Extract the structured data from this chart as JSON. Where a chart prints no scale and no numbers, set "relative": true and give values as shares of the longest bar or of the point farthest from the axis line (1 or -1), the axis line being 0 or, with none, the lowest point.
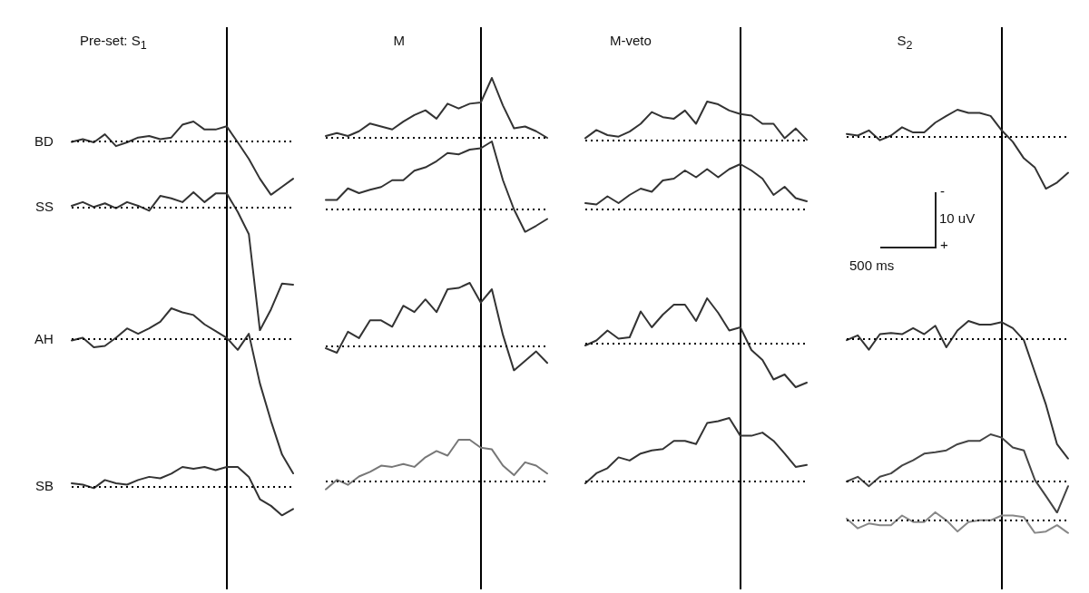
{
  "chart_data": [
    {
      "type": "line",
      "title": "Pre-set: S$_{1}$",
      "ylabel": "BD",
      "relative": true,
      "marker": "none",
      "categories": [
        null,
        null,
        null,
        null,
        null,
        null,
        null,
        null,
        null,
        null,
        null,
        null,
        null,
        null,
        null,
        null,
        null,
        null,
        null,
        null,
        null
      ],
      "series": [
        {
          "color": "#333333",
          "values": [
            -0.01,
            0.04,
            -0.02,
            0.13,
            -0.09,
            -0.02,
            0.07,
            0.1,
            0.04,
            0.07,
            0.31,
            0.37,
            0.22,
            0.22,
            0.28,
            -0.02,
            -0.33,
            -0.7,
            -1,
            -0.85,
            -0.7
          ]
        }
      ],
      "ref_lines": [
        {
          "axis": "y",
          "value": 0,
          "line_style": "dotted",
          "color": "#000000"
        }
      ]
    },
    {
      "type": "line",
      "title": "M",
      "relative": true,
      "marker": "none",
      "categories": [
        null,
        null,
        null,
        null,
        null,
        null,
        null,
        null,
        null,
        null,
        null,
        null,
        null,
        null,
        null,
        null,
        null,
        null,
        null,
        null,
        null
      ],
      "series": [
        {
          "color": "#333333",
          "values": [
            0.03,
            0.08,
            0.03,
            0.11,
            0.24,
            0.19,
            0.14,
            0.27,
            0.38,
            0.46,
            0.32,
            0.57,
            0.49,
            0.57,
            0.59,
            1,
            0.54,
            0.16,
            0.19,
            0.11,
            0
          ]
        }
      ],
      "ref_lines": [
        {
          "axis": "y",
          "value": 0,
          "line_style": "dotted",
          "color": "#000000"
        }
      ]
    },
    {
      "type": "line",
      "title": "M-veto",
      "relative": true,
      "marker": "none",
      "categories": [
        null,
        null,
        null,
        null,
        null,
        null,
        null,
        null,
        null,
        null,
        null,
        null,
        null,
        null,
        null,
        null,
        null,
        null,
        null,
        null,
        null
      ],
      "series": [
        {
          "color": "#333333",
          "values": [
            0.06,
            0.27,
            0.14,
            0.1,
            0.23,
            0.43,
            0.73,
            0.6,
            0.56,
            0.77,
            0.43,
            1,
            0.93,
            0.77,
            0.68,
            0.64,
            0.43,
            0.43,
            0.06,
            0.31,
            0.02
          ]
        }
      ],
      "ref_lines": [
        {
          "axis": "y",
          "value": 0,
          "line_style": "dotted",
          "color": "#000000"
        }
      ]
    },
    {
      "type": "line",
      "title": "S$_{2}$",
      "relative": true,
      "marker": "none",
      "categories": [
        null,
        null,
        null,
        null,
        null,
        null,
        null,
        null,
        null,
        null,
        null,
        null,
        null,
        null,
        null,
        null,
        null,
        null,
        null,
        null,
        null
      ],
      "series": [
        {
          "color": "#333333",
          "values": [
            0.06,
            0.03,
            0.13,
            -0.06,
            0.03,
            0.19,
            0.09,
            0.09,
            0.28,
            0.41,
            0.53,
            0.47,
            0.47,
            0.41,
            0.13,
            -0.09,
            -0.41,
            -0.59,
            -1,
            -0.88,
            -0.69
          ]
        }
      ],
      "ref_lines": [
        {
          "axis": "y",
          "value": 0,
          "line_style": "dotted",
          "color": "#000000"
        }
      ],
      "annotations": [
        "-",
        "10 uV",
        "+",
        "500 ms"
      ]
    },
    {
      "type": "line",
      "ylabel": "SS",
      "relative": true,
      "marker": "none",
      "categories": [
        null,
        null,
        null,
        null,
        null,
        null,
        null,
        null,
        null,
        null,
        null,
        null,
        null,
        null,
        null,
        null,
        null,
        null,
        null,
        null,
        null
      ],
      "series": [
        {
          "color": "#333333",
          "values": [
            0.01,
            0.04,
            0,
            0.03,
            -0.01,
            0.04,
            0.01,
            -0.03,
            0.09,
            0.07,
            0.04,
            0.12,
            0.04,
            0.11,
            0.11,
            -0.04,
            -0.22,
            -1,
            -0.83,
            -0.62,
            -0.63
          ]
        }
      ],
      "ref_lines": [
        {
          "axis": "y",
          "value": 0,
          "line_style": "dotted",
          "color": "#000000"
        }
      ]
    },
    {
      "type": "line",
      "relative": true,
      "marker": "none",
      "categories": [
        null,
        null,
        null,
        null,
        null,
        null,
        null,
        null,
        null,
        null,
        null,
        null,
        null,
        null,
        null,
        null,
        null,
        null,
        null,
        null,
        null
      ],
      "series": [
        {
          "color": "#333333",
          "values": [
            0.14,
            0.14,
            0.31,
            0.24,
            0.29,
            0.33,
            0.43,
            0.43,
            0.57,
            0.62,
            0.71,
            0.83,
            0.81,
            0.88,
            0.9,
            1,
            0.43,
            0,
            -0.33,
            -0.24,
            -0.14
          ]
        }
      ],
      "ref_lines": [
        {
          "axis": "y",
          "value": 0,
          "line_style": "dotted",
          "color": "#000000"
        }
      ]
    },
    {
      "type": "line",
      "relative": true,
      "marker": "none",
      "categories": [
        null,
        null,
        null,
        null,
        null,
        null,
        null,
        null,
        null,
        null,
        null,
        null,
        null,
        null,
        null,
        null,
        null,
        null,
        null,
        null,
        null
      ],
      "series": [
        {
          "color": "#333333",
          "values": [
            0.14,
            0.11,
            0.29,
            0.14,
            0.32,
            0.46,
            0.39,
            0.64,
            0.68,
            0.86,
            0.71,
            0.89,
            0.71,
            0.89,
            1,
            0.86,
            0.68,
            0.32,
            0.5,
            0.25,
            0.18
          ]
        }
      ],
      "ref_lines": [
        {
          "axis": "y",
          "value": 0,
          "line_style": "dotted",
          "color": "#000000"
        }
      ]
    },
    {
      "type": "line",
      "ylabel": "AH",
      "relative": true,
      "marker": "none",
      "categories": [
        null,
        null,
        null,
        null,
        null,
        null,
        null,
        null,
        null,
        null,
        null,
        null,
        null,
        null,
        null,
        null,
        null,
        null,
        null,
        null,
        null
      ],
      "series": [
        {
          "color": "#333333",
          "values": [
            -0.01,
            0.01,
            -0.06,
            -0.05,
            0.01,
            0.08,
            0.04,
            0.08,
            0.13,
            0.23,
            0.2,
            0.18,
            0.11,
            0.06,
            0.01,
            -0.08,
            0.04,
            -0.33,
            -0.61,
            -0.86,
            -1
          ]
        }
      ],
      "ref_lines": [
        {
          "axis": "y",
          "value": 0,
          "line_style": "dotted",
          "color": "#000000"
        }
      ]
    },
    {
      "type": "line",
      "relative": true,
      "marker": "none",
      "categories": [
        null,
        null,
        null,
        null,
        null,
        null,
        null,
        null,
        null,
        null,
        null,
        null,
        null,
        null,
        null,
        null,
        null,
        null,
        null,
        null,
        null
      ],
      "series": [
        {
          "color": "#333333",
          "values": [
            -0.03,
            -0.1,
            0.23,
            0.13,
            0.41,
            0.41,
            0.31,
            0.64,
            0.54,
            0.74,
            0.54,
            0.9,
            0.92,
            1,
            0.69,
            0.9,
            0.18,
            -0.38,
            -0.23,
            -0.08,
            -0.26
          ]
        }
      ],
      "ref_lines": [
        {
          "axis": "y",
          "value": 0,
          "line_style": "dotted",
          "color": "#000000"
        }
      ]
    },
    {
      "type": "line",
      "relative": true,
      "marker": "none",
      "categories": [
        null,
        null,
        null,
        null,
        null,
        null,
        null,
        null,
        null,
        null,
        null,
        null,
        null,
        null,
        null,
        null,
        null,
        null,
        null,
        null,
        null
      ],
      "series": [
        {
          "color": "#333333",
          "values": [
            -0.04,
            0.07,
            0.29,
            0.11,
            0.14,
            0.71,
            0.36,
            0.64,
            0.86,
            0.86,
            0.5,
            1,
            0.68,
            0.29,
            0.36,
            -0.14,
            -0.36,
            -0.79,
            -0.68,
            -0.96,
            -0.86
          ]
        }
      ],
      "ref_lines": [
        {
          "axis": "y",
          "value": 0,
          "line_style": "dotted",
          "color": "#000000"
        }
      ]
    },
    {
      "type": "line",
      "relative": true,
      "marker": "none",
      "categories": [
        null,
        null,
        null,
        null,
        null,
        null,
        null,
        null,
        null,
        null,
        null,
        null,
        null,
        null,
        null,
        null,
        null,
        null,
        null,
        null,
        null
      ],
      "series": [
        {
          "color": "#333333",
          "values": [
            -0.01,
            0.03,
            -0.09,
            0.04,
            0.05,
            0.04,
            0.09,
            0.04,
            0.11,
            -0.07,
            0.07,
            0.15,
            0.12,
            0.12,
            0.14,
            0.09,
            -0.01,
            -0.28,
            -0.55,
            -0.88,
            -1
          ]
        }
      ],
      "ref_lines": [
        {
          "axis": "y",
          "value": 0,
          "line_style": "dotted",
          "color": "#000000"
        }
      ]
    },
    {
      "type": "line",
      "ylabel": "SB",
      "relative": true,
      "marker": "none",
      "categories": [
        null,
        null,
        null,
        null,
        null,
        null,
        null,
        null,
        null,
        null,
        null,
        null,
        null,
        null,
        null,
        null,
        null,
        null,
        null,
        null,
        null
      ],
      "series": [
        {
          "color": "#333333",
          "values": [
            0.11,
            0.06,
            -0.06,
            0.22,
            0.11,
            0.06,
            0.22,
            0.33,
            0.28,
            0.44,
            0.67,
            0.61,
            0.67,
            0.56,
            0.67,
            0.67,
            0.33,
            -0.44,
            -0.67,
            -1,
            -0.78
          ]
        }
      ],
      "ref_lines": [
        {
          "axis": "y",
          "value": 0,
          "line_style": "dotted",
          "color": "#000000"
        }
      ]
    },
    {
      "type": "line",
      "relative": true,
      "marker": "none",
      "categories": [
        null,
        null,
        null,
        null,
        null,
        null,
        null,
        null,
        null,
        null,
        null,
        null,
        null,
        null,
        null,
        null,
        null,
        null,
        null,
        null,
        null
      ],
      "series": [
        {
          "color": "#777777",
          "values": [
            -0.19,
            0.04,
            -0.08,
            0.12,
            0.23,
            0.38,
            0.35,
            0.42,
            0.35,
            0.58,
            0.73,
            0.62,
            1,
            1,
            0.81,
            0.77,
            0.38,
            0.15,
            0.46,
            0.38,
            0.19
          ]
        }
      ],
      "ref_lines": [
        {
          "axis": "y",
          "value": 0,
          "line_style": "dotted",
          "color": "#000000"
        }
      ]
    },
    {
      "type": "line",
      "relative": true,
      "marker": "none",
      "categories": [
        null,
        null,
        null,
        null,
        null,
        null,
        null,
        null,
        null,
        null,
        null,
        null,
        null,
        null,
        null,
        null,
        null,
        null,
        null,
        null,
        null
      ],
      "series": [
        {
          "color": "#333333",
          "values": [
            -0.03,
            0.13,
            0.21,
            0.38,
            0.33,
            0.44,
            0.49,
            0.51,
            0.64,
            0.64,
            0.59,
            0.92,
            0.95,
            1,
            0.72,
            0.72,
            0.77,
            0.64,
            0.44,
            0.23,
            0.26
          ]
        }
      ],
      "ref_lines": [
        {
          "axis": "y",
          "value": 0,
          "line_style": "dotted",
          "color": "#000000"
        }
      ]
    },
    {
      "type": "line",
      "relative": true,
      "marker": "none",
      "categories": [
        null,
        null,
        null,
        null,
        null,
        null,
        null,
        null,
        null,
        null,
        null,
        null,
        null,
        null,
        null,
        null,
        null,
        null,
        null,
        null,
        null
      ],
      "series": [
        {
          "color": "#444444",
          "values": [
            0,
            0.1,
            -0.1,
            0.1,
            0.17,
            0.34,
            0.45,
            0.59,
            0.62,
            0.66,
            0.79,
            0.86,
            0.86,
            1,
            0.93,
            0.72,
            0.66,
            0.03,
            -0.31,
            -0.66,
            -0.1
          ]
        }
      ],
      "ref_lines": [
        {
          "axis": "y",
          "value": 0,
          "line_style": "dotted",
          "color": "#000000"
        }
      ]
    },
    {
      "type": "line",
      "relative": true,
      "marker": "none",
      "categories": [
        null,
        null,
        null,
        null,
        null,
        null,
        null,
        null,
        null,
        null,
        null,
        null,
        null,
        null,
        null,
        null,
        null,
        null,
        null,
        null,
        null
      ],
      "series": [
        {
          "color": "#888888",
          "values": [
            0.13,
            -0.63,
            -0.25,
            -0.38,
            -0.38,
            0.38,
            -0.13,
            -0.13,
            0.63,
            0,
            -0.88,
            -0.13,
            0,
            0,
            0.38,
            0.38,
            0.25,
            -1,
            -0.88,
            -0.38,
            -1
          ]
        }
      ],
      "ref_lines": [
        {
          "axis": "y",
          "value": 0,
          "line_style": "dotted",
          "color": "#000000"
        }
      ]
    }
  ]
}
